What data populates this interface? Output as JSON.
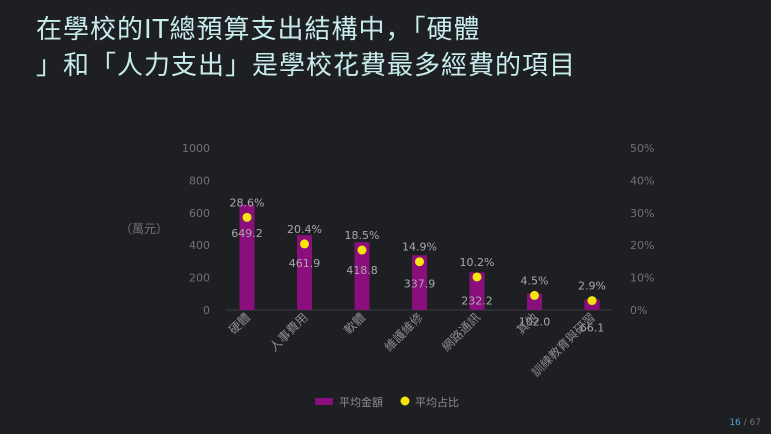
{
  "title": {
    "line1": "在學校的IT總預算支出結構中，「硬體",
    "line2": "」和「人力支出」是學校花費最多經費的項目"
  },
  "chart_data": {
    "type": "bar",
    "title": "",
    "unit_label": "（萬元）",
    "categories": [
      "硬體",
      "人事費用",
      "軟體",
      "維護維修",
      "網路通訊",
      "其他",
      "訓練教育與研習"
    ],
    "series": [
      {
        "name": "平均金額",
        "type": "bar",
        "axis": "left",
        "color": "#8a0f7d",
        "values": [
          649.2,
          461.9,
          418.8,
          337.9,
          232.2,
          102.0,
          66.1
        ],
        "labels": [
          "649.2",
          "461.9",
          "418.8",
          "337.9",
          "232.2",
          "102.0",
          "66.1"
        ]
      },
      {
        "name": "平均占比",
        "type": "scatter",
        "axis": "right",
        "color": "#f5e50a",
        "values": [
          28.6,
          20.4,
          18.5,
          14.9,
          10.2,
          4.5,
          2.9
        ],
        "labels": [
          "28.6%",
          "20.4%",
          "18.5%",
          "14.9%",
          "10.2%",
          "4.5%",
          "2.9%"
        ]
      }
    ],
    "y_left": {
      "ylim": [
        0,
        1000
      ],
      "ticks": [
        "0",
        "200",
        "400",
        "600",
        "800",
        "1000"
      ],
      "tick_values": [
        0,
        200,
        400,
        600,
        800,
        1000
      ]
    },
    "y_right": {
      "ylim": [
        0,
        50
      ],
      "ticks": [
        "0%",
        "10%",
        "20%",
        "30%",
        "40%",
        "50%"
      ],
      "tick_values": [
        0,
        10,
        20,
        30,
        40,
        50
      ]
    },
    "grid": false,
    "legend": "bottom"
  },
  "page": {
    "current": "16",
    "total": " / 67"
  }
}
